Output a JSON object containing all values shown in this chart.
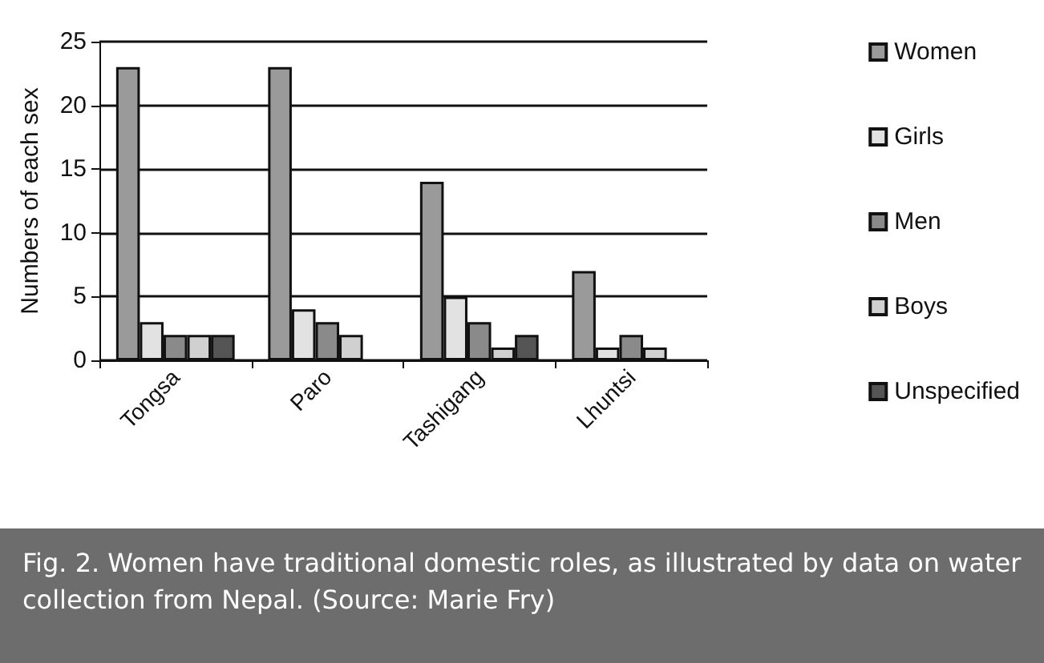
{
  "chart_data": {
    "type": "bar",
    "ylabel": "Numbers of each sex",
    "categories": [
      "Tongsa",
      "Paro",
      "Tashigang",
      "Lhuntsi"
    ],
    "series": [
      {
        "name": "Women",
        "color": "#9a9a9a",
        "values": [
          23,
          23,
          14,
          7
        ]
      },
      {
        "name": "Girls",
        "color": "#e2e2e2",
        "values": [
          3,
          4,
          5,
          1
        ]
      },
      {
        "name": "Men",
        "color": "#8a8a8a",
        "values": [
          2,
          3,
          3,
          2
        ]
      },
      {
        "name": "Boys",
        "color": "#d0d0d0",
        "values": [
          2,
          2,
          1,
          1
        ]
      },
      {
        "name": "Unspecified",
        "color": "#555555",
        "values": [
          2,
          null,
          2,
          null
        ]
      }
    ],
    "ylim": [
      0,
      25
    ],
    "yticks": [
      0,
      5,
      10,
      15,
      20,
      25
    ],
    "grid": "y",
    "legend": "right",
    "annotations": [
      "Fig. 2. Women have traditional domestic roles, as illustrated by data on water collection from Nepal. (Source: Marie Fry)"
    ]
  }
}
